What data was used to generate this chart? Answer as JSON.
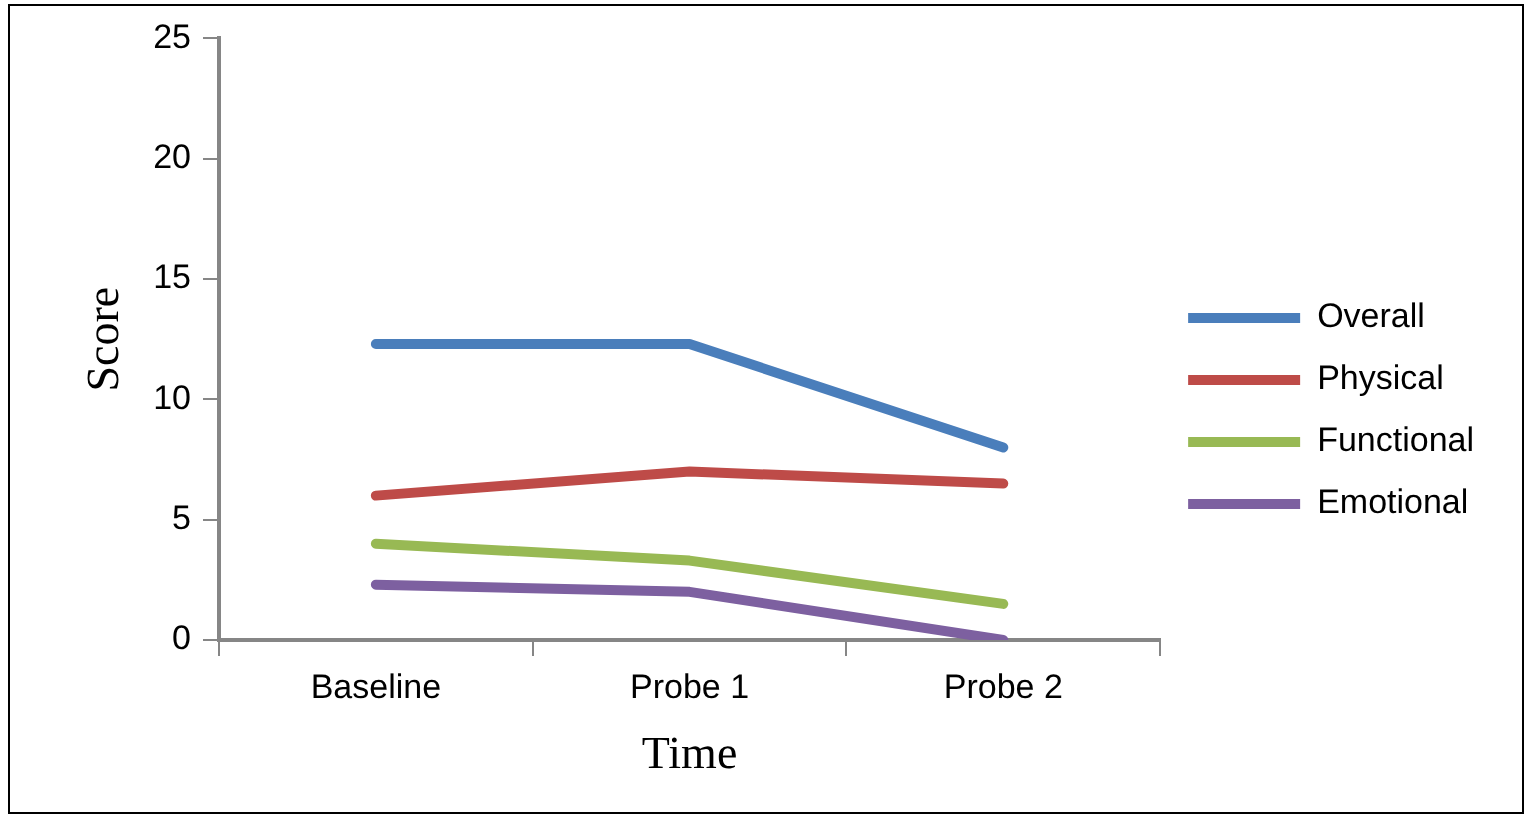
{
  "chart_data": {
    "type": "line",
    "xlabel": "Time",
    "ylabel": "Score",
    "categories": [
      "Baseline",
      "Probe 1",
      "Probe 2"
    ],
    "series": [
      {
        "name": "Overall",
        "color": "#4a7ebb",
        "values": [
          12.3,
          12.3,
          8
        ]
      },
      {
        "name": "Physical",
        "color": "#be4b48",
        "values": [
          6,
          7,
          6.5
        ]
      },
      {
        "name": "Functional",
        "color": "#98b954",
        "values": [
          4,
          3.3,
          1.5
        ]
      },
      {
        "name": "Emotional",
        "color": "#7d60a0",
        "values": [
          2.3,
          2,
          0
        ]
      }
    ],
    "ylim": [
      0,
      25
    ],
    "yticks": [
      0,
      5,
      10,
      15,
      20,
      25
    ],
    "grid": false,
    "legend": "right",
    "marker": "none",
    "line_style": "solid"
  }
}
